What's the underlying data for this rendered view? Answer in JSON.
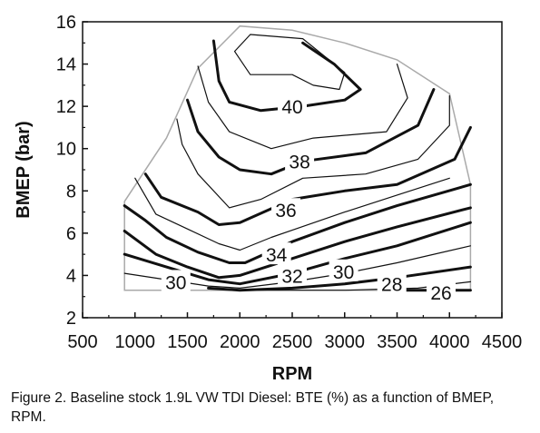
{
  "chart_data": {
    "type": "contour",
    "title": "",
    "xlabel": "RPM",
    "ylabel": "BMEP (bar)",
    "xlim": [
      500,
      4500
    ],
    "ylim": [
      2,
      16
    ],
    "xticks": [
      "500",
      "1000",
      "1500",
      "2000",
      "2500",
      "3000",
      "3500",
      "4000",
      "4500"
    ],
    "yticks": [
      "2",
      "4",
      "6",
      "8",
      "10",
      "12",
      "14",
      "16"
    ],
    "grid": false,
    "legend": "none",
    "z_quantity": "BTE (%)",
    "boundary": [
      [
        900,
        3.3
      ],
      [
        900,
        7.5
      ],
      [
        1300,
        10.5
      ],
      [
        1600,
        13.8
      ],
      [
        2000,
        15.8
      ],
      [
        2500,
        15.6
      ],
      [
        3000,
        15.0
      ],
      [
        3500,
        14.2
      ],
      [
        4000,
        12.6
      ],
      [
        4200,
        8.3
      ],
      [
        4200,
        3.3
      ]
    ],
    "contours": [
      {
        "level": 26,
        "label": "26",
        "points": [
          [
            3350,
            3.3
          ],
          [
            4200,
            3.3
          ]
        ]
      },
      {
        "level": 27,
        "points": [
          [
            2050,
            3.3
          ],
          [
            3000,
            3.3
          ],
          [
            3700,
            3.4
          ],
          [
            4200,
            3.7
          ]
        ]
      },
      {
        "level": 28,
        "label": "28",
        "points": [
          [
            1700,
            3.4
          ],
          [
            2000,
            3.3
          ],
          [
            2500,
            3.4
          ],
          [
            3000,
            3.6
          ],
          [
            3500,
            3.9
          ],
          [
            4200,
            4.4
          ]
        ]
      },
      {
        "level": 29,
        "points": [
          [
            900,
            4.1
          ],
          [
            1300,
            3.8
          ],
          [
            1700,
            3.5
          ],
          [
            2000,
            3.4
          ],
          [
            2500,
            3.7
          ],
          [
            3000,
            4.1
          ],
          [
            3500,
            4.6
          ],
          [
            4200,
            5.4
          ]
        ]
      },
      {
        "level": 30,
        "label": "30",
        "points": [
          [
            900,
            5.0
          ],
          [
            1300,
            4.4
          ],
          [
            1700,
            3.8
          ],
          [
            2000,
            3.6
          ],
          [
            2500,
            4.1
          ],
          [
            3000,
            4.8
          ],
          [
            3500,
            5.4
          ],
          [
            4200,
            6.5
          ]
        ]
      },
      {
        "level": 32,
        "label": "32",
        "points": [
          [
            900,
            6.1
          ],
          [
            1200,
            5.0
          ],
          [
            1500,
            4.4
          ],
          [
            1800,
            3.9
          ],
          [
            2000,
            4.0
          ],
          [
            2500,
            4.8
          ],
          [
            3000,
            5.6
          ],
          [
            3500,
            6.3
          ],
          [
            4200,
            7.2
          ]
        ]
      },
      {
        "level": 34,
        "label": "34",
        "points": [
          [
            900,
            7.3
          ],
          [
            1100,
            6.6
          ],
          [
            1300,
            5.8
          ],
          [
            1600,
            5.1
          ],
          [
            1900,
            4.6
          ],
          [
            2050,
            4.6
          ],
          [
            2500,
            5.6
          ],
          [
            3000,
            6.5
          ],
          [
            3500,
            7.3
          ],
          [
            4200,
            8.3
          ]
        ]
      },
      {
        "level": 35,
        "points": [
          [
            1000,
            8.6
          ],
          [
            1200,
            6.9
          ],
          [
            1500,
            6.2
          ],
          [
            1800,
            5.5
          ],
          [
            2000,
            5.2
          ],
          [
            2300,
            5.8
          ],
          [
            3000,
            7.0
          ],
          [
            3500,
            7.8
          ],
          [
            4000,
            8.6
          ]
        ]
      },
      {
        "level": 36,
        "label": "36",
        "points": [
          [
            1100,
            8.8
          ],
          [
            1250,
            7.7
          ],
          [
            1600,
            7.0
          ],
          [
            1800,
            6.4
          ],
          [
            2000,
            6.5
          ],
          [
            2500,
            7.6
          ],
          [
            3000,
            8.0
          ],
          [
            3500,
            8.3
          ],
          [
            4050,
            9.5
          ],
          [
            4200,
            11.0
          ]
        ]
      },
      {
        "level": 37,
        "points": [
          [
            1400,
            11.4
          ],
          [
            1450,
            10.2
          ],
          [
            1600,
            8.8
          ],
          [
            1900,
            7.2
          ],
          [
            2200,
            7.6
          ],
          [
            2600,
            8.6
          ],
          [
            3200,
            8.8
          ],
          [
            3700,
            9.5
          ],
          [
            4000,
            11.1
          ],
          [
            4000,
            12.5
          ]
        ]
      },
      {
        "level": 38,
        "label": "38",
        "points": [
          [
            1500,
            12.3
          ],
          [
            1600,
            10.8
          ],
          [
            1800,
            9.6
          ],
          [
            2000,
            9.0
          ],
          [
            2300,
            8.8
          ],
          [
            2600,
            9.4
          ],
          [
            3200,
            9.8
          ],
          [
            3700,
            11.1
          ],
          [
            3850,
            12.8
          ]
        ]
      },
      {
        "level": 39,
        "points": [
          [
            1600,
            13.9
          ],
          [
            1700,
            12.2
          ],
          [
            1900,
            10.8
          ],
          [
            2300,
            10.0
          ],
          [
            2700,
            10.5
          ],
          [
            3400,
            10.8
          ],
          [
            3600,
            12.4
          ],
          [
            3500,
            14.0
          ]
        ]
      },
      {
        "level": 40,
        "label": "40",
        "points": [
          [
            1750,
            15.1
          ],
          [
            1800,
            13.2
          ],
          [
            1900,
            12.2
          ],
          [
            2200,
            11.8
          ],
          [
            2600,
            12.0
          ],
          [
            3000,
            12.3
          ],
          [
            3150,
            12.8
          ],
          [
            2900,
            14.0
          ],
          [
            2600,
            15.0
          ]
        ]
      },
      {
        "level": 41,
        "points": [
          [
            2500,
            13.5
          ],
          [
            2700,
            13.0
          ],
          [
            2950,
            12.8
          ],
          [
            3000,
            13.6
          ],
          [
            2600,
            15.2
          ],
          [
            2100,
            15.4
          ],
          [
            1950,
            14.6
          ],
          [
            2100,
            13.5
          ],
          [
            2500,
            13.5
          ]
        ]
      }
    ]
  },
  "caption": "Figure 2.  Baseline stock 1.9L VW TDI Diesel:  BTE (%) as a function of BMEP, RPM.",
  "colors": {
    "ink": "#111111",
    "boundary": "#aaaaaa"
  }
}
